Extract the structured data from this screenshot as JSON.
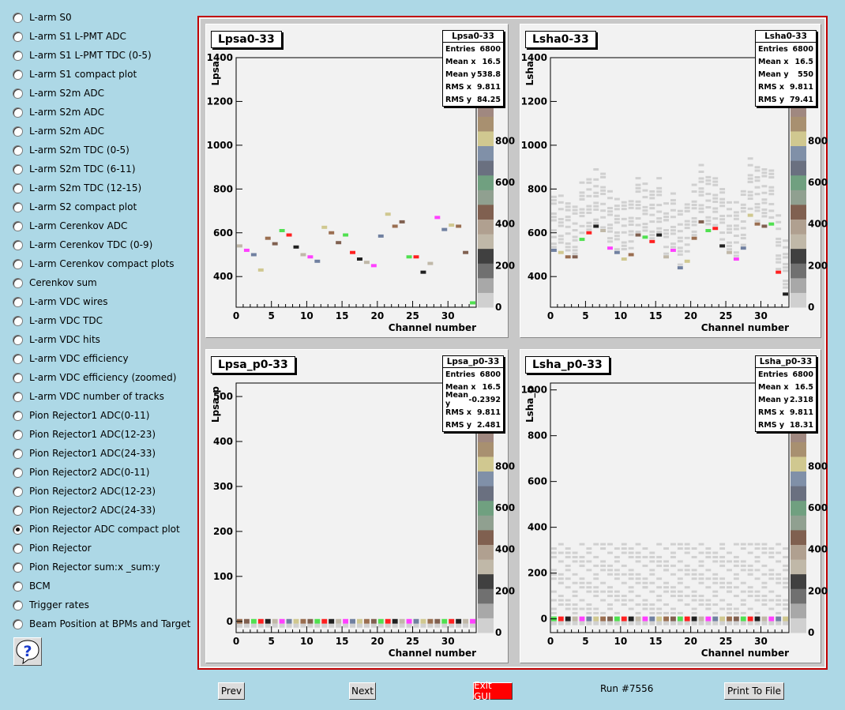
{
  "nav": {
    "items": [
      {
        "label": "L-arm S0",
        "checked": false
      },
      {
        "label": "L-arm S1 L-PMT ADC",
        "checked": false
      },
      {
        "label": "L-arm S1 L-PMT TDC (0-5)",
        "checked": false
      },
      {
        "label": "L-arm S1 compact plot",
        "checked": false
      },
      {
        "label": "L-arm S2m ADC",
        "checked": false
      },
      {
        "label": "L-arm S2m ADC",
        "checked": false
      },
      {
        "label": "L-arm S2m ADC",
        "checked": false
      },
      {
        "label": "L-arm S2m TDC (0-5)",
        "checked": false
      },
      {
        "label": "L-arm S2m TDC (6-11)",
        "checked": false
      },
      {
        "label": "L-arm S2m TDC (12-15)",
        "checked": false
      },
      {
        "label": "L-arm S2 compact plot",
        "checked": false
      },
      {
        "label": "L-arm Cerenkov ADC",
        "checked": false
      },
      {
        "label": "L-arm Cerenkov TDC (0-9)",
        "checked": false
      },
      {
        "label": "L-arm Cerenkov compact plots",
        "checked": false
      },
      {
        "label": "Cerenkov sum",
        "checked": false
      },
      {
        "label": "L-arm VDC wires",
        "checked": false
      },
      {
        "label": "L-arm VDC TDC",
        "checked": false
      },
      {
        "label": "L-arm VDC hits",
        "checked": false
      },
      {
        "label": "L-arm VDC efficiency",
        "checked": false
      },
      {
        "label": "L-arm VDC efficiency (zoomed)",
        "checked": false
      },
      {
        "label": "L-arm VDC number of tracks",
        "checked": false
      },
      {
        "label": "Pion Rejector1 ADC(0-11)",
        "checked": false
      },
      {
        "label": "Pion Rejector1 ADC(12-23)",
        "checked": false
      },
      {
        "label": "Pion Rejector1 ADC(24-33)",
        "checked": false
      },
      {
        "label": "Pion Rejector2 ADC(0-11)",
        "checked": false
      },
      {
        "label": "Pion Rejector2 ADC(12-23)",
        "checked": false
      },
      {
        "label": "Pion Rejector2 ADC(24-33)",
        "checked": false
      },
      {
        "label": "Pion Rejector ADC compact plot",
        "checked": true
      },
      {
        "label": "Pion Rejector",
        "checked": false
      },
      {
        "label": "Pion Rejector sum:x _sum:y",
        "checked": false
      },
      {
        "label": "BCM",
        "checked": false
      },
      {
        "label": "Trigger rates",
        "checked": false
      },
      {
        "label": "Beam Position at BPMs and Target",
        "checked": false
      }
    ],
    "help_icon": "help-question-icon"
  },
  "buttons": {
    "prev": "Prev",
    "next": "Next",
    "exit": "Exit GUI",
    "print": "Print To File"
  },
  "run_label": "Run #7556",
  "colors": {
    "background": "#add8e6",
    "frame": "#c00000",
    "exit": "#ff0000"
  },
  "pads": [
    {
      "title": "Lpsa0-33",
      "stats": {
        "title": "Lpsa0-33",
        "rows": [
          [
            "Entries",
            "6800"
          ],
          [
            "Mean x",
            "16.5"
          ],
          [
            "Mean y",
            "538.8"
          ],
          [
            "RMS x",
            "9.811"
          ],
          [
            "RMS y",
            "84.25"
          ]
        ]
      },
      "xlabel": "Channel number",
      "ylabel": "Lpsa"
    },
    {
      "title": "Lsha0-33",
      "stats": {
        "title": "Lsha0-33",
        "rows": [
          [
            "Entries",
            "6800"
          ],
          [
            "Mean x",
            "16.5"
          ],
          [
            "Mean y",
            "550"
          ],
          [
            "RMS x",
            "9.811"
          ],
          [
            "RMS y",
            "79.41"
          ]
        ]
      },
      "xlabel": "Channel number",
      "ylabel": "Lsha"
    },
    {
      "title": "Lpsa_p0-33",
      "stats": {
        "title": "Lpsa_p0-33",
        "rows": [
          [
            "Entries",
            "6800"
          ],
          [
            "Mean x",
            "16.5"
          ],
          [
            "Mean y",
            "-0.2392"
          ],
          [
            "RMS x",
            "9.811"
          ],
          [
            "RMS y",
            "2.481"
          ]
        ]
      },
      "xlabel": "Channel number",
      "ylabel": "Lpsa_p"
    },
    {
      "title": "Lsha_p0-33",
      "stats": {
        "title": "Lsha_p0-33",
        "rows": [
          [
            "Entries",
            "6800"
          ],
          [
            "Mean x",
            "16.5"
          ],
          [
            "Mean y",
            "2.318"
          ],
          [
            "RMS x",
            "9.811"
          ],
          [
            "RMS y",
            "18.31"
          ]
        ]
      },
      "xlabel": "Channel number",
      "ylabel": "Lsha_p"
    }
  ],
  "chart_data": [
    {
      "type": "heatmap",
      "title": "Lpsa0-33",
      "xlabel": "Channel number",
      "ylabel": "Lpsa",
      "xlim": [
        0,
        34
      ],
      "ylim": [
        260,
        1400
      ],
      "xticks": [
        0,
        5,
        10,
        15,
        20,
        25,
        30
      ],
      "yticks": [
        400,
        600,
        800,
        1000,
        1200,
        1400
      ],
      "zticks": [
        "0",
        "200",
        "400",
        "600",
        "800"
      ],
      "points": [
        [
          0,
          540
        ],
        [
          1,
          520
        ],
        [
          2,
          500
        ],
        [
          3,
          430
        ],
        [
          4,
          575
        ],
        [
          5,
          550
        ],
        [
          6,
          610
        ],
        [
          7,
          590
        ],
        [
          8,
          535
        ],
        [
          9,
          500
        ],
        [
          10,
          490
        ],
        [
          11,
          470
        ],
        [
          12,
          625
        ],
        [
          13,
          600
        ],
        [
          14,
          555
        ],
        [
          15,
          590
        ],
        [
          16,
          510
        ],
        [
          17,
          480
        ],
        [
          18,
          465
        ],
        [
          19,
          450
        ],
        [
          20,
          585
        ],
        [
          21,
          685
        ],
        [
          22,
          630
        ],
        [
          23,
          650
        ],
        [
          24,
          490
        ],
        [
          25,
          490
        ],
        [
          26,
          420
        ],
        [
          27,
          460
        ],
        [
          28,
          670
        ],
        [
          29,
          615
        ],
        [
          30,
          635
        ],
        [
          31,
          630
        ],
        [
          32,
          510
        ],
        [
          33,
          280
        ]
      ]
    },
    {
      "type": "heatmap",
      "title": "Lsha0-33",
      "xlabel": "Channel number",
      "ylabel": "Lsha",
      "xlim": [
        0,
        34
      ],
      "ylim": [
        260,
        1400
      ],
      "xticks": [
        0,
        5,
        10,
        15,
        20,
        25,
        30
      ],
      "yticks": [
        400,
        600,
        800,
        1000,
        1200,
        1400
      ],
      "zticks": [
        "0",
        "200",
        "400",
        "600",
        "800"
      ],
      "points": [
        [
          0,
          520
        ],
        [
          1,
          510
        ],
        [
          2,
          490
        ],
        [
          3,
          490
        ],
        [
          4,
          570
        ],
        [
          5,
          600
        ],
        [
          6,
          630
        ],
        [
          7,
          610
        ],
        [
          8,
          530
        ],
        [
          9,
          510
        ],
        [
          10,
          480
        ],
        [
          11,
          500
        ],
        [
          12,
          590
        ],
        [
          13,
          580
        ],
        [
          14,
          560
        ],
        [
          15,
          590
        ],
        [
          16,
          490
        ],
        [
          17,
          520
        ],
        [
          18,
          440
        ],
        [
          19,
          470
        ],
        [
          20,
          575
        ],
        [
          21,
          650
        ],
        [
          22,
          610
        ],
        [
          23,
          620
        ],
        [
          24,
          540
        ],
        [
          25,
          510
        ],
        [
          26,
          480
        ],
        [
          27,
          530
        ],
        [
          28,
          680
        ],
        [
          29,
          640
        ],
        [
          30,
          630
        ],
        [
          31,
          640
        ],
        [
          32,
          420
        ],
        [
          33,
          320
        ]
      ]
    },
    {
      "type": "heatmap",
      "title": "Lpsa_p0-33",
      "xlabel": "Channel number",
      "ylabel": "Lpsa_p",
      "xlim": [
        0,
        34
      ],
      "ylim": [
        -25,
        530
      ],
      "xticks": [
        0,
        5,
        10,
        15,
        20,
        25,
        30
      ],
      "yticks": [
        0,
        100,
        200,
        300,
        400,
        500
      ],
      "zticks": [
        "0",
        "200",
        "400",
        "600",
        "800"
      ],
      "points": [
        [
          0,
          0
        ],
        [
          1,
          0
        ],
        [
          2,
          0
        ],
        [
          3,
          0
        ],
        [
          4,
          0
        ],
        [
          5,
          0
        ],
        [
          6,
          0
        ],
        [
          7,
          0
        ],
        [
          8,
          0
        ],
        [
          9,
          0
        ],
        [
          10,
          0
        ],
        [
          11,
          0
        ],
        [
          12,
          0
        ],
        [
          13,
          0
        ],
        [
          14,
          0
        ],
        [
          15,
          0
        ],
        [
          16,
          0
        ],
        [
          17,
          0
        ],
        [
          18,
          0
        ],
        [
          19,
          0
        ],
        [
          20,
          0
        ],
        [
          21,
          0
        ],
        [
          22,
          0
        ],
        [
          23,
          0
        ],
        [
          24,
          0
        ],
        [
          25,
          0
        ],
        [
          26,
          0
        ],
        [
          27,
          0
        ],
        [
          28,
          0
        ],
        [
          29,
          0
        ],
        [
          30,
          0
        ],
        [
          31,
          0
        ],
        [
          32,
          0
        ],
        [
          33,
          0
        ]
      ]
    },
    {
      "type": "heatmap",
      "title": "Lsha_p0-33",
      "xlabel": "Channel number",
      "ylabel": "Lsha_p",
      "xlim": [
        0,
        34
      ],
      "ylim": [
        -60,
        1030
      ],
      "xticks": [
        0,
        5,
        10,
        15,
        20,
        25,
        30
      ],
      "yticks": [
        0,
        200,
        400,
        600,
        800,
        1000
      ],
      "zticks": [
        "0",
        "200",
        "400",
        "600",
        "800"
      ],
      "points": [
        [
          0,
          0
        ],
        [
          1,
          0
        ],
        [
          2,
          0
        ],
        [
          3,
          0
        ],
        [
          4,
          0
        ],
        [
          5,
          0
        ],
        [
          6,
          0
        ],
        [
          7,
          0
        ],
        [
          8,
          0
        ],
        [
          9,
          0
        ],
        [
          10,
          0
        ],
        [
          11,
          0
        ],
        [
          12,
          0
        ],
        [
          13,
          0
        ],
        [
          14,
          0
        ],
        [
          15,
          0
        ],
        [
          16,
          0
        ],
        [
          17,
          0
        ],
        [
          18,
          0
        ],
        [
          19,
          0
        ],
        [
          20,
          0
        ],
        [
          21,
          0
        ],
        [
          22,
          0
        ],
        [
          23,
          0
        ],
        [
          24,
          0
        ],
        [
          25,
          0
        ],
        [
          26,
          0
        ],
        [
          27,
          0
        ],
        [
          28,
          0
        ],
        [
          29,
          0
        ],
        [
          30,
          0
        ],
        [
          31,
          0
        ],
        [
          32,
          0
        ],
        [
          33,
          0
        ]
      ]
    }
  ]
}
